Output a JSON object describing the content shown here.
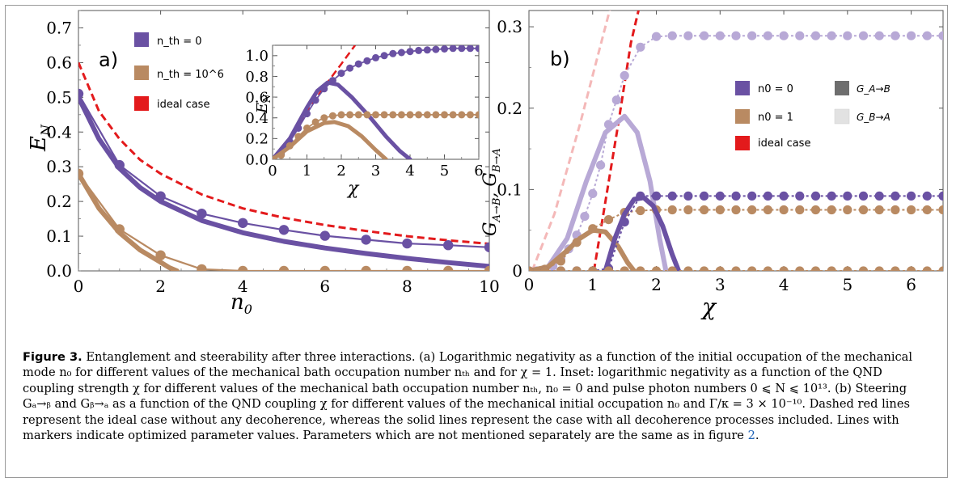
{
  "caption": {
    "label": "Figure 3.",
    "text": "Entanglement and steerability after three interactions. (a) Logarithmic negativity as a function of the initial occupation of the mechanical mode n₀ for different values of the mechanical bath occupation number nₜₕ and for χ = 1. Inset: logarithmic negativity as a function of the QND coupling strength χ for different values of the mechanical bath occupation number nₜₕ, n₀ = 0 and pulse photon numbers 0 ⩽ N ⩽ 10¹³. (b) Steering Gₐ→ᵦ and Gᵦ→ₐ as a function of the QND coupling χ for different values of the mechanical initial occupation n₀ and Γ/κ = 3 × 10⁻¹⁰. Dashed red lines represent the ideal case without any decoherence, whereas the solid lines represent the case with all decoherence processes included. Lines with markers indicate optimized parameter values. Parameters which are not mentioned separately are the same as in figure",
    "figure_ref": "2",
    "end": "."
  },
  "colors": {
    "purple": "#6a51a3",
    "brown": "#b98a62",
    "red": "#e31a1c",
    "lightpurple": "#b8a9d6",
    "pink": "#f4b8b8"
  },
  "chart_data": [
    {
      "id": "a",
      "type": "line",
      "panel_label": "a)",
      "xlabel": "n0",
      "ylabel": "EN",
      "xlim": [
        0,
        10
      ],
      "ylim": [
        0,
        0.75
      ],
      "xticks": [
        "0",
        "2",
        "4",
        "6",
        "8",
        "10"
      ],
      "yticks": [
        "0.0",
        "0.1",
        "0.2",
        "0.3",
        "0.4",
        "0.5",
        "0.6",
        "0.7"
      ],
      "legend": [
        {
          "label": "n_th = 0",
          "color": "purple",
          "style": "marker"
        },
        {
          "label": "n_th = 10^6",
          "color": "brown",
          "style": "marker"
        },
        {
          "label": "ideal case",
          "color": "red",
          "style": "dashed"
        }
      ],
      "series": [
        {
          "name": "ideal case",
          "style": "dashed",
          "color": "red",
          "x": [
            0,
            0.5,
            1,
            1.5,
            2,
            3,
            4,
            5,
            6,
            7,
            8,
            9,
            10
          ],
          "y": [
            0.6,
            0.46,
            0.38,
            0.32,
            0.28,
            0.22,
            0.18,
            0.153,
            0.132,
            0.115,
            0.1,
            0.088,
            0.078
          ]
        },
        {
          "name": "n_th = 0",
          "style": "thick",
          "color": "purple",
          "x": [
            0,
            0.5,
            1,
            1.5,
            2,
            3,
            4,
            5,
            6,
            7,
            8,
            9,
            10
          ],
          "y": [
            0.5,
            0.38,
            0.295,
            0.24,
            0.2,
            0.145,
            0.11,
            0.085,
            0.066,
            0.05,
            0.036,
            0.024,
            0.013
          ]
        },
        {
          "name": "n_th = 0",
          "style": "marker",
          "color": "purple",
          "x": [
            0,
            1,
            2,
            3,
            4,
            5,
            6,
            7,
            8,
            9,
            10
          ],
          "y": [
            0.51,
            0.305,
            0.215,
            0.165,
            0.138,
            0.118,
            0.101,
            0.09,
            0.079,
            0.074,
            0.068
          ]
        },
        {
          "name": "n_th = 10^6",
          "style": "thick",
          "color": "brown",
          "x": [
            0,
            0.5,
            1,
            1.5,
            2,
            2.2,
            2.4
          ],
          "y": [
            0.28,
            0.18,
            0.11,
            0.06,
            0.025,
            0.01,
            0.0
          ]
        },
        {
          "name": "n_th = 10^6",
          "style": "marker",
          "color": "brown",
          "x": [
            0,
            1,
            2,
            3,
            4,
            5,
            6,
            7,
            8,
            9,
            10
          ],
          "y": [
            0.28,
            0.12,
            0.045,
            0.005,
            0,
            0,
            0,
            0,
            0,
            0,
            0
          ]
        }
      ],
      "inset": {
        "xlabel": "χ",
        "ylabel": "EN",
        "xlim": [
          0,
          6
        ],
        "ylim": [
          0,
          1.1
        ],
        "xticks": [
          "0",
          "1",
          "2",
          "3",
          "4",
          "5",
          "6"
        ],
        "yticks": [
          "0.0",
          "0.2",
          "0.4",
          "0.6",
          "0.8",
          "1.0"
        ],
        "series": [
          {
            "name": "ideal case",
            "style": "dashed",
            "color": "red",
            "x": [
              0,
              0.5,
              1,
              1.5,
              2,
              2.4
            ],
            "y": [
              0,
              0.2,
              0.46,
              0.7,
              0.92,
              1.1
            ]
          },
          {
            "name": "n_th = 0",
            "style": "thick",
            "color": "purple",
            "x": [
              0,
              0.5,
              1,
              1.3,
              1.6,
              1.9,
              2.3,
              2.8,
              3.3,
              3.7,
              4.0
            ],
            "y": [
              0,
              0.2,
              0.5,
              0.66,
              0.74,
              0.72,
              0.6,
              0.42,
              0.22,
              0.08,
              0.0
            ]
          },
          {
            "name": "n_th = 0",
            "style": "marker",
            "color": "purple",
            "x": [
              0,
              0.25,
              0.5,
              0.75,
              1,
              1.25,
              1.5,
              1.75,
              2,
              2.25,
              2.5,
              2.75,
              3,
              3.25,
              3.5,
              3.75,
              4,
              4.25,
              4.5,
              4.75,
              5,
              5.25,
              5.5,
              5.75,
              6
            ],
            "y": [
              0,
              0.05,
              0.17,
              0.3,
              0.44,
              0.57,
              0.68,
              0.76,
              0.83,
              0.88,
              0.92,
              0.95,
              0.98,
              1.0,
              1.02,
              1.03,
              1.04,
              1.05,
              1.055,
              1.06,
              1.065,
              1.07,
              1.07,
              1.07,
              1.07
            ]
          },
          {
            "name": "n_th = 10^6",
            "style": "thick",
            "color": "brown",
            "x": [
              0,
              0.5,
              1,
              1.5,
              1.8,
              2.2,
              2.6,
              3.0,
              3.3
            ],
            "y": [
              0,
              0.12,
              0.27,
              0.35,
              0.36,
              0.32,
              0.22,
              0.09,
              0.0
            ]
          },
          {
            "name": "n_th = 10^6",
            "style": "marker",
            "color": "brown",
            "x": [
              0,
              0.25,
              0.5,
              0.75,
              1,
              1.25,
              1.5,
              1.75,
              2,
              2.25,
              2.5,
              2.75,
              3,
              3.25,
              3.5,
              3.75,
              4,
              4.25,
              4.5,
              4.75,
              5,
              5.25,
              5.5,
              5.75,
              6
            ],
            "y": [
              0,
              0.04,
              0.13,
              0.22,
              0.3,
              0.36,
              0.4,
              0.42,
              0.43,
              0.43,
              0.43,
              0.43,
              0.43,
              0.43,
              0.43,
              0.43,
              0.43,
              0.43,
              0.43,
              0.43,
              0.43,
              0.43,
              0.43,
              0.43,
              0.43
            ]
          }
        ]
      }
    },
    {
      "id": "b",
      "type": "line",
      "panel_label": "b)",
      "xlabel": "χ",
      "ylabel": "G_A→B, G_B→A",
      "xlim": [
        0,
        6.5
      ],
      "ylim": [
        0,
        0.32
      ],
      "xticks": [
        "0",
        "1",
        "2",
        "3",
        "4",
        "5",
        "6"
      ],
      "yticks": [
        "0",
        "0.1",
        "0.2",
        "0.3"
      ],
      "legend": [
        {
          "label": "n0 = 0",
          "color": "purple",
          "style": "marker"
        },
        {
          "label": "n0 = 1",
          "color": "brown",
          "style": "marker"
        },
        {
          "label": "ideal case",
          "color": "red",
          "style": "dashed"
        },
        {
          "label": "G_A→B",
          "color": "#6e6e6e",
          "style": "square"
        },
        {
          "label": "G_B→A",
          "color": "#e2e2e2",
          "style": "square"
        }
      ],
      "series": [
        {
          "name": "ideal G_B→A",
          "style": "dashed",
          "color": "pink",
          "x": [
            0.05,
            0.4,
            0.8,
            1.1,
            1.3
          ],
          "y": [
            0,
            0.07,
            0.18,
            0.27,
            0.33
          ]
        },
        {
          "name": "ideal G_A→B",
          "style": "dashed",
          "color": "red",
          "x": [
            1.02,
            1.2,
            1.4,
            1.6,
            1.75
          ],
          "y": [
            0,
            0.085,
            0.18,
            0.28,
            0.33
          ]
        },
        {
          "name": "n0=0 G_B→A",
          "style": "thick",
          "color": "lightpurple",
          "x": [
            0,
            0.3,
            0.6,
            0.9,
            1.2,
            1.5,
            1.7,
            1.9,
            2.05,
            2.15
          ],
          "y": [
            0,
            0.005,
            0.04,
            0.11,
            0.17,
            0.19,
            0.17,
            0.11,
            0.04,
            0.0
          ]
        },
        {
          "name": "n0=0 G_B→A",
          "style": "marker",
          "color": "lightpurple",
          "x": [
            0,
            0.125,
            0.25,
            0.375,
            0.5,
            0.625,
            0.75,
            0.875,
            1,
            1.125,
            1.25,
            1.375,
            1.5,
            1.75,
            2,
            2.25,
            2.5,
            2.75,
            3,
            3.25,
            3.5,
            3.75,
            4,
            4.25,
            4.5,
            4.75,
            5,
            5.25,
            5.5,
            5.75,
            6,
            6.25,
            6.5
          ],
          "y": [
            0,
            0,
            0.002,
            0.006,
            0.015,
            0.027,
            0.044,
            0.067,
            0.095,
            0.13,
            0.18,
            0.21,
            0.24,
            0.275,
            0.288,
            0.289,
            0.289,
            0.289,
            0.289,
            0.289,
            0.289,
            0.289,
            0.289,
            0.289,
            0.289,
            0.289,
            0.289,
            0.289,
            0.289,
            0.289,
            0.289,
            0.289,
            0.289
          ]
        },
        {
          "name": "n0=1 G_B→A",
          "style": "thick",
          "color": "brown",
          "x": [
            0,
            0.3,
            0.6,
            0.8,
            1.0,
            1.2,
            1.4,
            1.55,
            1.65
          ],
          "y": [
            0,
            0.005,
            0.025,
            0.04,
            0.05,
            0.048,
            0.03,
            0.01,
            0.0
          ]
        },
        {
          "name": "n0=1 G_B→A",
          "style": "marker",
          "color": "brown",
          "x": [
            0,
            0.25,
            0.5,
            0.75,
            1,
            1.25,
            1.5,
            1.75,
            2,
            2.25,
            2.5,
            2.75,
            3,
            3.25,
            3.5,
            3.75,
            4,
            4.25,
            4.5,
            4.75,
            5,
            5.25,
            5.5,
            5.75,
            6,
            6.25,
            6.5
          ],
          "y": [
            0,
            0.002,
            0.012,
            0.035,
            0.052,
            0.063,
            0.072,
            0.074,
            0.075,
            0.075,
            0.075,
            0.075,
            0.075,
            0.075,
            0.075,
            0.075,
            0.075,
            0.075,
            0.075,
            0.075,
            0.075,
            0.075,
            0.075,
            0.075,
            0.075,
            0.075,
            0.075
          ]
        },
        {
          "name": "n0=0 G_A→B",
          "style": "thick",
          "color": "purple",
          "x": [
            1.2,
            1.35,
            1.5,
            1.65,
            1.8,
            1.95,
            2.1,
            2.25,
            2.35
          ],
          "y": [
            0,
            0.04,
            0.07,
            0.088,
            0.09,
            0.08,
            0.055,
            0.02,
            0.0
          ]
        },
        {
          "name": "n0=0 G_A→B",
          "style": "marker",
          "color": "purple",
          "x": [
            0,
            0.25,
            0.5,
            0.75,
            1,
            1.25,
            1.5,
            1.75,
            2,
            2.25,
            2.5,
            2.75,
            3,
            3.25,
            3.5,
            3.75,
            4,
            4.25,
            4.5,
            4.75,
            5,
            5.25,
            5.5,
            5.75,
            6,
            6.25,
            6.5
          ],
          "y": [
            0,
            0,
            0,
            0,
            0,
            0.003,
            0.06,
            0.092,
            0.092,
            0.092,
            0.092,
            0.092,
            0.092,
            0.092,
            0.092,
            0.092,
            0.092,
            0.092,
            0.092,
            0.092,
            0.092,
            0.092,
            0.092,
            0.092,
            0.092,
            0.092,
            0.092
          ]
        },
        {
          "name": "n0=1 G_A→B",
          "style": "marker",
          "color": "brown",
          "x": [
            0,
            0.25,
            0.5,
            0.75,
            1,
            1.25,
            1.5,
            1.75,
            2,
            2.25,
            2.5,
            2.75,
            3,
            3.25,
            3.5,
            3.75,
            4,
            4.25,
            4.5,
            4.75,
            5,
            5.25,
            5.5,
            5.75,
            6,
            6.25,
            6.5
          ],
          "y": [
            0,
            0,
            0,
            0,
            0,
            0,
            0,
            0,
            0,
            0,
            0,
            0,
            0,
            0,
            0,
            0,
            0,
            0,
            0,
            0,
            0,
            0,
            0,
            0,
            0,
            0,
            0
          ]
        }
      ]
    }
  ]
}
